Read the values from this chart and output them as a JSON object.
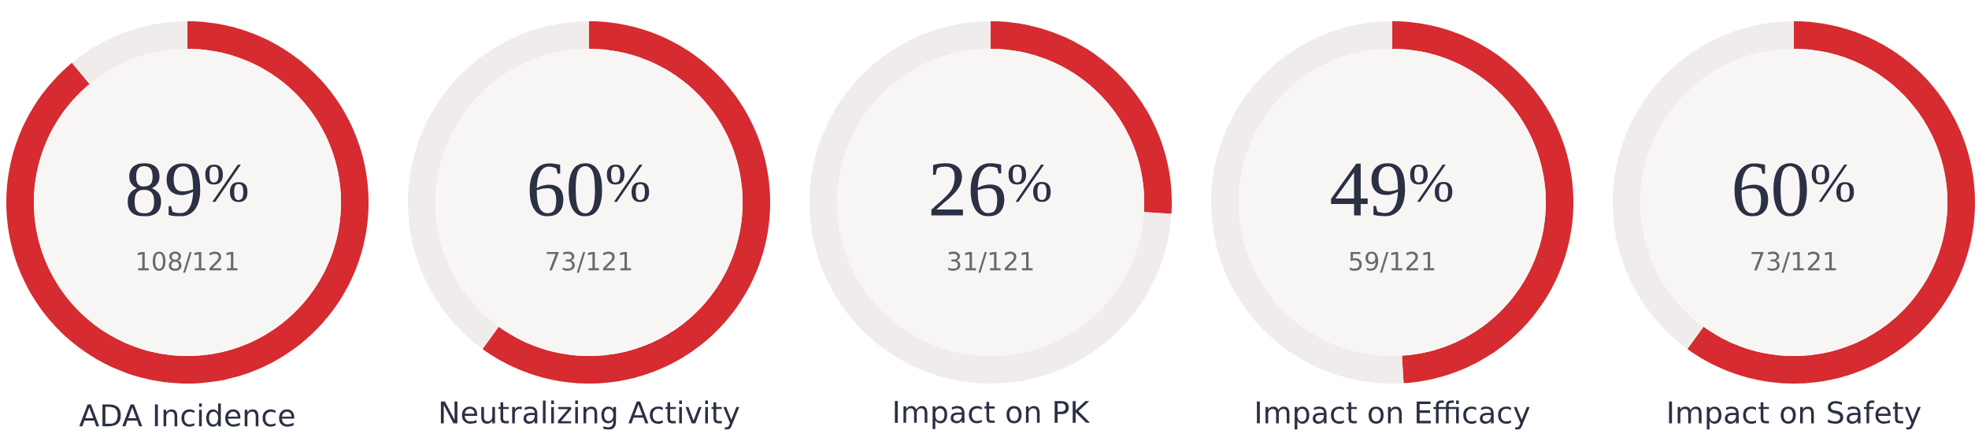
{
  "chart_data": [
    {
      "type": "donut",
      "title": "ADA Incidence",
      "categories": [
        null,
        null
      ],
      "values": [
        89,
        11
      ],
      "colors": [
        "#d62b30",
        "#f0eceb"
      ],
      "annotations": [
        "89$^{%}$",
        "108/121"
      ]
    },
    {
      "type": "donut",
      "title": "Neutralizing Activity",
      "categories": [
        null,
        null
      ],
      "values": [
        60,
        40
      ],
      "colors": [
        "#d62b30",
        "#f0eceb"
      ],
      "annotations": [
        "60$^{%}$",
        "73/121"
      ]
    },
    {
      "type": "donut",
      "title": "Impact on PK",
      "categories": [
        null,
        null
      ],
      "values": [
        26,
        74
      ],
      "colors": [
        "#d62b30",
        "#f0eceb"
      ],
      "annotations": [
        "26$^{%}$",
        "31/121"
      ]
    },
    {
      "type": "donut",
      "title": "Impact on Efficacy",
      "categories": [
        null,
        null
      ],
      "values": [
        49,
        51
      ],
      "colors": [
        "#d62b30",
        "#f0eceb"
      ],
      "annotations": [
        "49$^{%}$",
        "59/121"
      ]
    },
    {
      "type": "donut",
      "title": "Impact on Safety",
      "categories": [
        null,
        null
      ],
      "values": [
        60,
        40
      ],
      "colors": [
        "#d62b30",
        "#f0eceb"
      ],
      "annotations": [
        "60$^{%}$",
        "73/121"
      ]
    }
  ]
}
